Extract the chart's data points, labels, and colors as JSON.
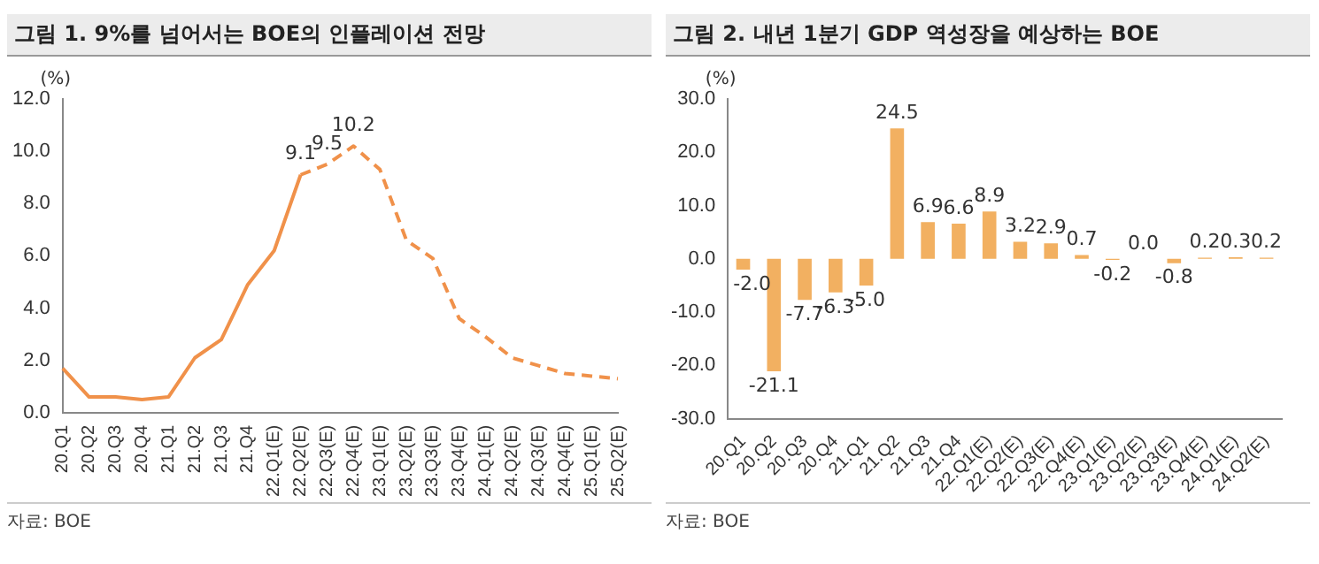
{
  "chart_data": [
    {
      "type": "line",
      "title": "그림 1. 9%를 넘어서는 BOE의 인플레이션 전망",
      "ylabel": "(%)",
      "categories": [
        "20.Q1",
        "20.Q2",
        "20.Q3",
        "20.Q4",
        "21.Q1",
        "21.Q2",
        "21.Q3",
        "21.Q4",
        "22.Q1(E)",
        "22.Q2(E)",
        "22.Q3(E)",
        "22.Q4(E)",
        "23.Q1(E)",
        "23.Q2(E)",
        "23.Q3(E)",
        "23.Q4(E)",
        "24.Q1(E)",
        "24.Q2(E)",
        "24.Q3(E)",
        "24.Q4(E)",
        "25.Q1(E)",
        "25.Q2(E)"
      ],
      "series": [
        {
          "color": "#f0914a",
          "line_style": "solid",
          "values": [
            1.7,
            0.6,
            0.6,
            0.5,
            0.6,
            2.1,
            2.8,
            4.9,
            6.2,
            9.1,
            null,
            null,
            null,
            null,
            null,
            null,
            null,
            null,
            null,
            null,
            null,
            null
          ],
          "value_labels": [
            null,
            null,
            null,
            null,
            null,
            null,
            null,
            null,
            null,
            "9.1",
            null,
            null,
            null,
            null,
            null,
            null,
            null,
            null,
            null,
            null,
            null,
            null
          ]
        },
        {
          "color": "#f0914a",
          "line_style": "dashed",
          "values": [
            null,
            null,
            null,
            null,
            null,
            null,
            null,
            null,
            null,
            9.1,
            9.5,
            10.2,
            9.3,
            6.6,
            5.9,
            3.6,
            2.9,
            2.1,
            1.8,
            1.5,
            1.4,
            1.3
          ],
          "value_labels": [
            null,
            null,
            null,
            null,
            null,
            null,
            null,
            null,
            null,
            null,
            "9.5",
            "10.2",
            null,
            null,
            null,
            null,
            null,
            null,
            null,
            null,
            null,
            null
          ]
        }
      ],
      "ylim": [
        0,
        12
      ],
      "yticks": [
        {
          "value": 0,
          "label": "0.0"
        },
        {
          "value": 2,
          "label": "2.0"
        },
        {
          "value": 4,
          "label": "4.0"
        },
        {
          "value": 6,
          "label": "6.0"
        },
        {
          "value": 8,
          "label": "8.0"
        },
        {
          "value": 10,
          "label": "10.0"
        },
        {
          "value": 12,
          "label": "12.0"
        }
      ],
      "grid": false,
      "legend": false,
      "marker": "none",
      "annotations": [
        "자료: BOE"
      ]
    },
    {
      "type": "bar",
      "title": "그림 2. 내년 1분기 GDP 역성장을 예상하는 BOE",
      "ylabel": "(%)",
      "categories": [
        "20.Q1",
        "20.Q2",
        "20.Q3",
        "20.Q4",
        "21.Q1",
        "21.Q2",
        "21.Q3",
        "21.Q4",
        "22.Q1(E)",
        "22.Q2(E)",
        "22.Q3(E)",
        "22.Q4(E)",
        "23.Q1(E)",
        "23.Q2(E)",
        "23.Q3(E)",
        "23.Q4(E)",
        "24.Q1(E)",
        "24.Q2(E)"
      ],
      "values": [
        -2.0,
        -21.1,
        -7.7,
        -6.3,
        -5.0,
        24.5,
        6.9,
        6.6,
        8.9,
        3.2,
        2.9,
        0.7,
        -0.2,
        0.0,
        -0.8,
        0.2,
        0.3,
        0.2
      ],
      "color": "#f2b061",
      "value_labels": [
        "-2.0",
        "-21.1",
        "-7.7",
        "-6.3",
        "-5.0",
        "24.5",
        "6.9",
        "6.6",
        "8.9",
        "3.2",
        "2.9",
        "0.7",
        "-0.2",
        "0.0",
        "-0.8",
        "0.2",
        "0.3",
        "0.2"
      ],
      "ylim": [
        -30,
        30
      ],
      "yticks": [
        {
          "value": -30,
          "label": "-30.0"
        },
        {
          "value": -20,
          "label": "-20.0"
        },
        {
          "value": -10,
          "label": "-10.0"
        },
        {
          "value": 0,
          "label": "0.0"
        },
        {
          "value": 10,
          "label": "10.0"
        },
        {
          "value": 20,
          "label": "20.0"
        },
        {
          "value": 30,
          "label": "30.0"
        }
      ],
      "grid": false,
      "legend": false,
      "annotations": [
        "자료: BOE"
      ]
    }
  ]
}
